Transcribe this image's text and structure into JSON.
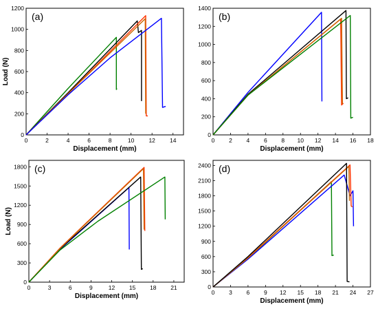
{
  "chart_data": [
    {
      "type": "line",
      "panel_label": "(a)",
      "xlabel": "Displacement (mm)",
      "ylabel": "Load (N)",
      "xlim": [
        0,
        15
      ],
      "ylim": [
        0,
        1200
      ],
      "xticks": [
        0,
        2,
        4,
        6,
        8,
        10,
        12,
        14
      ],
      "yticks": [
        0,
        200,
        400,
        600,
        800,
        1000,
        1200
      ],
      "grid": false,
      "series": [
        {
          "color": "#008000",
          "x": [
            0,
            4,
            8.6,
            8.6,
            8.65
          ],
          "y": [
            0,
            440,
            925,
            430,
            440
          ]
        },
        {
          "color": "#000000",
          "x": [
            0,
            4,
            10.6,
            10.7,
            11.0,
            11.0
          ],
          "y": [
            0,
            400,
            1080,
            970,
            990,
            320
          ]
        },
        {
          "color": "#ff3300",
          "x": [
            0,
            4,
            11.4,
            11.45,
            11.6
          ],
          "y": [
            0,
            390,
            1130,
            180,
            180
          ]
        },
        {
          "color": "#cc6600",
          "x": [
            0,
            4,
            11.35,
            11.4
          ],
          "y": [
            0,
            390,
            1100,
            200
          ]
        },
        {
          "color": "#0000ff",
          "x": [
            0,
            4,
            8,
            12.9,
            13.0,
            13.3
          ],
          "y": [
            0,
            380,
            730,
            1105,
            260,
            270
          ]
        }
      ]
    },
    {
      "type": "line",
      "panel_label": "(b)",
      "xlabel": "Displacement (mm)",
      "ylabel": "",
      "xlim": [
        0,
        18
      ],
      "ylim": [
        0,
        1400
      ],
      "xticks": [
        0,
        2,
        4,
        6,
        8,
        10,
        12,
        14,
        16,
        18
      ],
      "yticks": [
        0,
        200,
        400,
        600,
        800,
        1000,
        1200,
        1400
      ],
      "grid": false,
      "series": [
        {
          "color": "#0000ff",
          "x": [
            0,
            4,
            12.4,
            12.45
          ],
          "y": [
            0,
            470,
            1355,
            370
          ]
        },
        {
          "color": "#000000",
          "x": [
            0,
            4,
            15.2,
            15.25,
            15.45
          ],
          "y": [
            0,
            450,
            1375,
            400,
            410
          ]
        },
        {
          "color": "#ff3300",
          "x": [
            0,
            4,
            14.6,
            14.7,
            14.9
          ],
          "y": [
            0,
            440,
            1280,
            330,
            350
          ]
        },
        {
          "color": "#cc6600",
          "x": [
            0,
            4,
            14.7,
            14.8
          ],
          "y": [
            0,
            440,
            1290,
            340
          ]
        },
        {
          "color": "#008000",
          "x": [
            0,
            4,
            15.7,
            15.75,
            16.0
          ],
          "y": [
            0,
            440,
            1320,
            185,
            195
          ]
        }
      ]
    },
    {
      "type": "line",
      "panel_label": "(c)",
      "xlabel": "Displacement (mm)",
      "ylabel": "Load (N)",
      "xlim": [
        0,
        22.5
      ],
      "ylim": [
        0,
        1900
      ],
      "xticks": [
        0,
        3,
        6,
        9,
        12,
        15,
        18,
        21
      ],
      "yticks": [
        0,
        300,
        600,
        900,
        1200,
        1500,
        1800
      ],
      "grid": false,
      "series": [
        {
          "color": "#0000ff",
          "x": [
            0,
            4.5,
            14.5,
            14.55
          ],
          "y": [
            0,
            510,
            1475,
            510
          ]
        },
        {
          "color": "#000000",
          "x": [
            0,
            4.5,
            16.2,
            16.3,
            16.5
          ],
          "y": [
            0,
            520,
            1640,
            200,
            210
          ]
        },
        {
          "color": "#ff3300",
          "x": [
            0,
            4.5,
            16.7,
            16.8
          ],
          "y": [
            0,
            530,
            1790,
            800
          ]
        },
        {
          "color": "#cc6600",
          "x": [
            0,
            4.5,
            16.6,
            16.7
          ],
          "y": [
            0,
            525,
            1770,
            820
          ]
        },
        {
          "color": "#008000",
          "x": [
            0,
            4.5,
            10,
            19.7,
            19.75
          ],
          "y": [
            0,
            500,
            950,
            1640,
            980
          ]
        }
      ]
    },
    {
      "type": "line",
      "panel_label": "(d)",
      "xlabel": "Displacement (mm)",
      "ylabel": "",
      "xlim": [
        0,
        27
      ],
      "ylim": [
        0,
        2500
      ],
      "xticks": [
        0,
        3,
        6,
        9,
        12,
        15,
        18,
        21,
        24,
        27
      ],
      "yticks": [
        0,
        300,
        600,
        900,
        1200,
        1500,
        1800,
        2100,
        2400
      ],
      "grid": false,
      "series": [
        {
          "color": "#008000",
          "x": [
            0,
            6,
            20.3,
            20.4,
            20.7
          ],
          "y": [
            0,
            560,
            2080,
            620,
            630
          ]
        },
        {
          "color": "#0000ff",
          "x": [
            0,
            6,
            22.5,
            23.5,
            24.0,
            24.1
          ],
          "y": [
            0,
            550,
            2210,
            1800,
            1900,
            1200
          ]
        },
        {
          "color": "#ff3300",
          "x": [
            0,
            6,
            23.5,
            23.7,
            23.9
          ],
          "y": [
            0,
            580,
            2410,
            1600,
            1580
          ]
        },
        {
          "color": "#cc6600",
          "x": [
            0,
            6,
            23.3,
            23.4
          ],
          "y": [
            0,
            570,
            2380,
            1700
          ]
        },
        {
          "color": "#000000",
          "x": [
            0,
            6,
            22.9,
            23.0,
            23.4
          ],
          "y": [
            0,
            600,
            2440,
            110,
            100
          ]
        }
      ]
    }
  ]
}
